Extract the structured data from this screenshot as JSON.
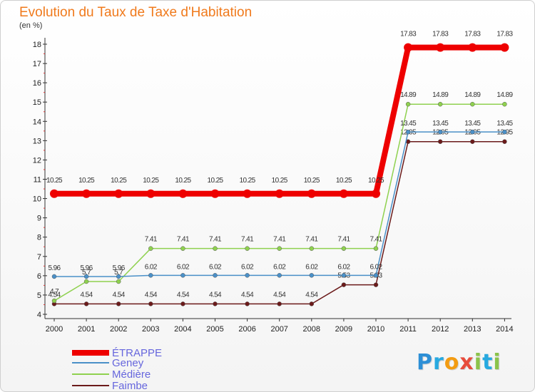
{
  "title": "Evolution du Taux de Taxe d'Habitation",
  "unit": "(en %)",
  "logo": {
    "letters": [
      {
        "ch": "P",
        "color": "#2d8fd6"
      },
      {
        "ch": "r",
        "color": "#27a9e0"
      },
      {
        "ch": "o",
        "color": "#f39c12"
      },
      {
        "ch": "x",
        "color": "#e74c3c"
      },
      {
        "ch": "i",
        "color": "#8bc34a"
      },
      {
        "ch": "t",
        "color": "#27a9e0"
      },
      {
        "ch": "i",
        "color": "#8bc34a"
      }
    ]
  },
  "chart_data": {
    "type": "line",
    "title": "Evolution du Taux de Taxe d'Habitation",
    "ylabel": "(en %)",
    "x": [
      2000,
      2001,
      2002,
      2003,
      2004,
      2005,
      2006,
      2007,
      2008,
      2009,
      2010,
      2011,
      2012,
      2013,
      2014
    ],
    "ylim": [
      4,
      18
    ],
    "yticks": [
      4,
      5,
      6,
      7,
      8,
      9,
      10,
      11,
      12,
      13,
      14,
      15,
      16,
      17,
      18
    ],
    "grid": false,
    "legend": "bottom-left",
    "series": [
      {
        "name": "ÉTRAPPE",
        "color": "#ee0000",
        "values": [
          10.25,
          10.25,
          10.25,
          10.25,
          10.25,
          10.25,
          10.25,
          10.25,
          10.25,
          10.25,
          10.25,
          17.83,
          17.83,
          17.83,
          17.83
        ]
      },
      {
        "name": "Geney",
        "color": "#4a90c8",
        "values": [
          5.96,
          5.96,
          5.96,
          6.02,
          6.02,
          6.02,
          6.02,
          6.02,
          6.02,
          6.02,
          6.02,
          13.45,
          13.45,
          13.45,
          13.45
        ]
      },
      {
        "name": "Médière",
        "color": "#8fd14f",
        "values": [
          4.7,
          5.7,
          5.7,
          7.41,
          7.41,
          7.41,
          7.41,
          7.41,
          7.41,
          7.41,
          7.41,
          14.89,
          14.89,
          14.89,
          14.89
        ]
      },
      {
        "name": "Faimbe",
        "color": "#6b1a1a",
        "values": [
          4.54,
          4.54,
          4.54,
          4.54,
          4.54,
          4.54,
          4.54,
          4.54,
          4.54,
          5.53,
          5.53,
          12.95,
          12.95,
          12.95,
          12.95
        ]
      }
    ]
  }
}
